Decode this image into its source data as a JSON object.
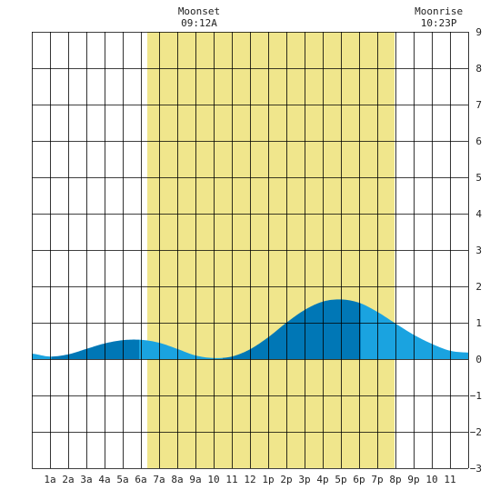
{
  "chart_data": {
    "type": "area",
    "title": "",
    "xlabel": "",
    "ylabel": "",
    "x_tick_labels": [
      "1a",
      "2a",
      "3a",
      "4a",
      "5a",
      "6a",
      "7a",
      "8a",
      "9a",
      "10",
      "11",
      "12",
      "1p",
      "2p",
      "3p",
      "4p",
      "5p",
      "6p",
      "7p",
      "8p",
      "9p",
      "10",
      "11"
    ],
    "y_tick_labels": [
      "9",
      "8",
      "7",
      "6",
      "5",
      "4",
      "3",
      "2",
      "1",
      "0",
      "−1",
      "−2",
      "−3"
    ],
    "xlim": [
      0,
      24
    ],
    "ylim": [
      -3,
      9
    ],
    "grid": true,
    "daylight": {
      "start_hour": 6.35,
      "end_hour": 19.95,
      "color": "#f0e68c"
    },
    "moon_events": [
      {
        "label": "Moonset",
        "time": "09:12A",
        "hour": 9.2
      },
      {
        "label": "Moonrise",
        "time": "10:23P",
        "hour": 22.38
      }
    ],
    "tide_series": {
      "hours": [
        0,
        1,
        2,
        3,
        4,
        5,
        6,
        7,
        8,
        9,
        10,
        11,
        12,
        13,
        14,
        15,
        16,
        17,
        18,
        19,
        20,
        21,
        22,
        23,
        24
      ],
      "heights": [
        0.15,
        0.07,
        0.13,
        0.28,
        0.43,
        0.52,
        0.53,
        0.45,
        0.28,
        0.1,
        0.03,
        0.07,
        0.27,
        0.6,
        1.0,
        1.35,
        1.58,
        1.64,
        1.55,
        1.3,
        0.98,
        0.67,
        0.42,
        0.23,
        0.18
      ]
    },
    "turning_points_hours": [
      1.1,
      5.9,
      10.5,
      18.1
    ],
    "colors": {
      "tide_dark": "#0077b6",
      "tide_light": "#1aa3e0",
      "grid": "#000000",
      "background": "#ffffff"
    }
  }
}
